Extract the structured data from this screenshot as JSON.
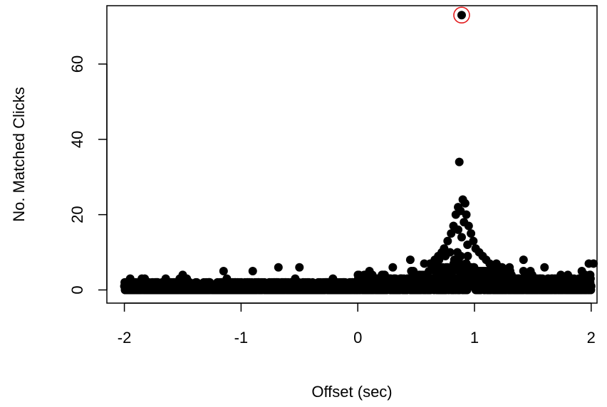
{
  "chart_data": {
    "type": "scatter",
    "title": "",
    "xlabel": "Offset (sec)",
    "ylabel": "No. Matched Clicks",
    "xlim": [
      -2.15,
      2.05
    ],
    "ylim": [
      -3.5,
      75.5
    ],
    "x_ticks": [
      {
        "value": -2,
        "label": "-2"
      },
      {
        "value": -1,
        "label": "-1"
      },
      {
        "value": 0,
        "label": "0"
      },
      {
        "value": 1,
        "label": "1"
      },
      {
        "value": 2,
        "label": "2"
      }
    ],
    "y_ticks": [
      {
        "value": 0,
        "label": "0"
      },
      {
        "value": 20,
        "label": "20"
      },
      {
        "value": 40,
        "label": "40"
      },
      {
        "value": 60,
        "label": "60"
      }
    ],
    "point_color": "#000000",
    "highlight_color": "#e31a1c",
    "points": [
      {
        "x": 0.89,
        "y": 73
      },
      {
        "x": 0.87,
        "y": 34
      },
      {
        "x": 0.9,
        "y": 24
      },
      {
        "x": 0.92,
        "y": 23
      },
      {
        "x": 0.86,
        "y": 22
      },
      {
        "x": 0.88,
        "y": 21
      },
      {
        "x": 0.84,
        "y": 20
      },
      {
        "x": 0.93,
        "y": 20
      },
      {
        "x": 0.91,
        "y": 18
      },
      {
        "x": 0.95,
        "y": 17
      },
      {
        "x": 0.82,
        "y": 17
      },
      {
        "x": 0.86,
        "y": 16
      },
      {
        "x": 0.97,
        "y": 15
      },
      {
        "x": 0.8,
        "y": 15
      },
      {
        "x": 0.89,
        "y": 14
      },
      {
        "x": 0.99,
        "y": 13
      },
      {
        "x": 0.77,
        "y": 13
      },
      {
        "x": 0.94,
        "y": 12
      },
      {
        "x": 1.01,
        "y": 11
      },
      {
        "x": 0.74,
        "y": 11
      },
      {
        "x": 1.04,
        "y": 10
      },
      {
        "x": 0.72,
        "y": 10
      },
      {
        "x": 1.07,
        "y": 9
      },
      {
        "x": 0.69,
        "y": 9
      },
      {
        "x": 1.1,
        "y": 8
      },
      {
        "x": 0.66,
        "y": 8
      },
      {
        "x": 1.13,
        "y": 7
      },
      {
        "x": 0.62,
        "y": 7
      },
      {
        "x": 1.17,
        "y": 6
      },
      {
        "x": 0.57,
        "y": 7
      },
      {
        "x": 0.3,
        "y": 6
      },
      {
        "x": 0.45,
        "y": 8
      },
      {
        "x": -0.5,
        "y": 6
      },
      {
        "x": -0.68,
        "y": 6
      },
      {
        "x": 1.42,
        "y": 8
      },
      {
        "x": 1.98,
        "y": 7
      },
      {
        "x": 2.02,
        "y": 7
      },
      {
        "x": 1.6,
        "y": 6
      },
      {
        "x": -1.15,
        "y": 5
      },
      {
        "x": -0.9,
        "y": 5
      },
      {
        "x": 0.1,
        "y": 5
      },
      {
        "x": -1.5,
        "y": 4
      },
      {
        "x": -1.95,
        "y": 3
      },
      {
        "x": -1.85,
        "y": 3
      },
      {
        "x": 1.8,
        "y": 4
      },
      {
        "x": 1.3,
        "y": 6
      }
    ],
    "baseline": {
      "x_range": [
        -2,
        2
      ],
      "count": 1400,
      "peak_x": 0.9,
      "base_max": [
        3,
        5,
        6
      ]
    }
  }
}
